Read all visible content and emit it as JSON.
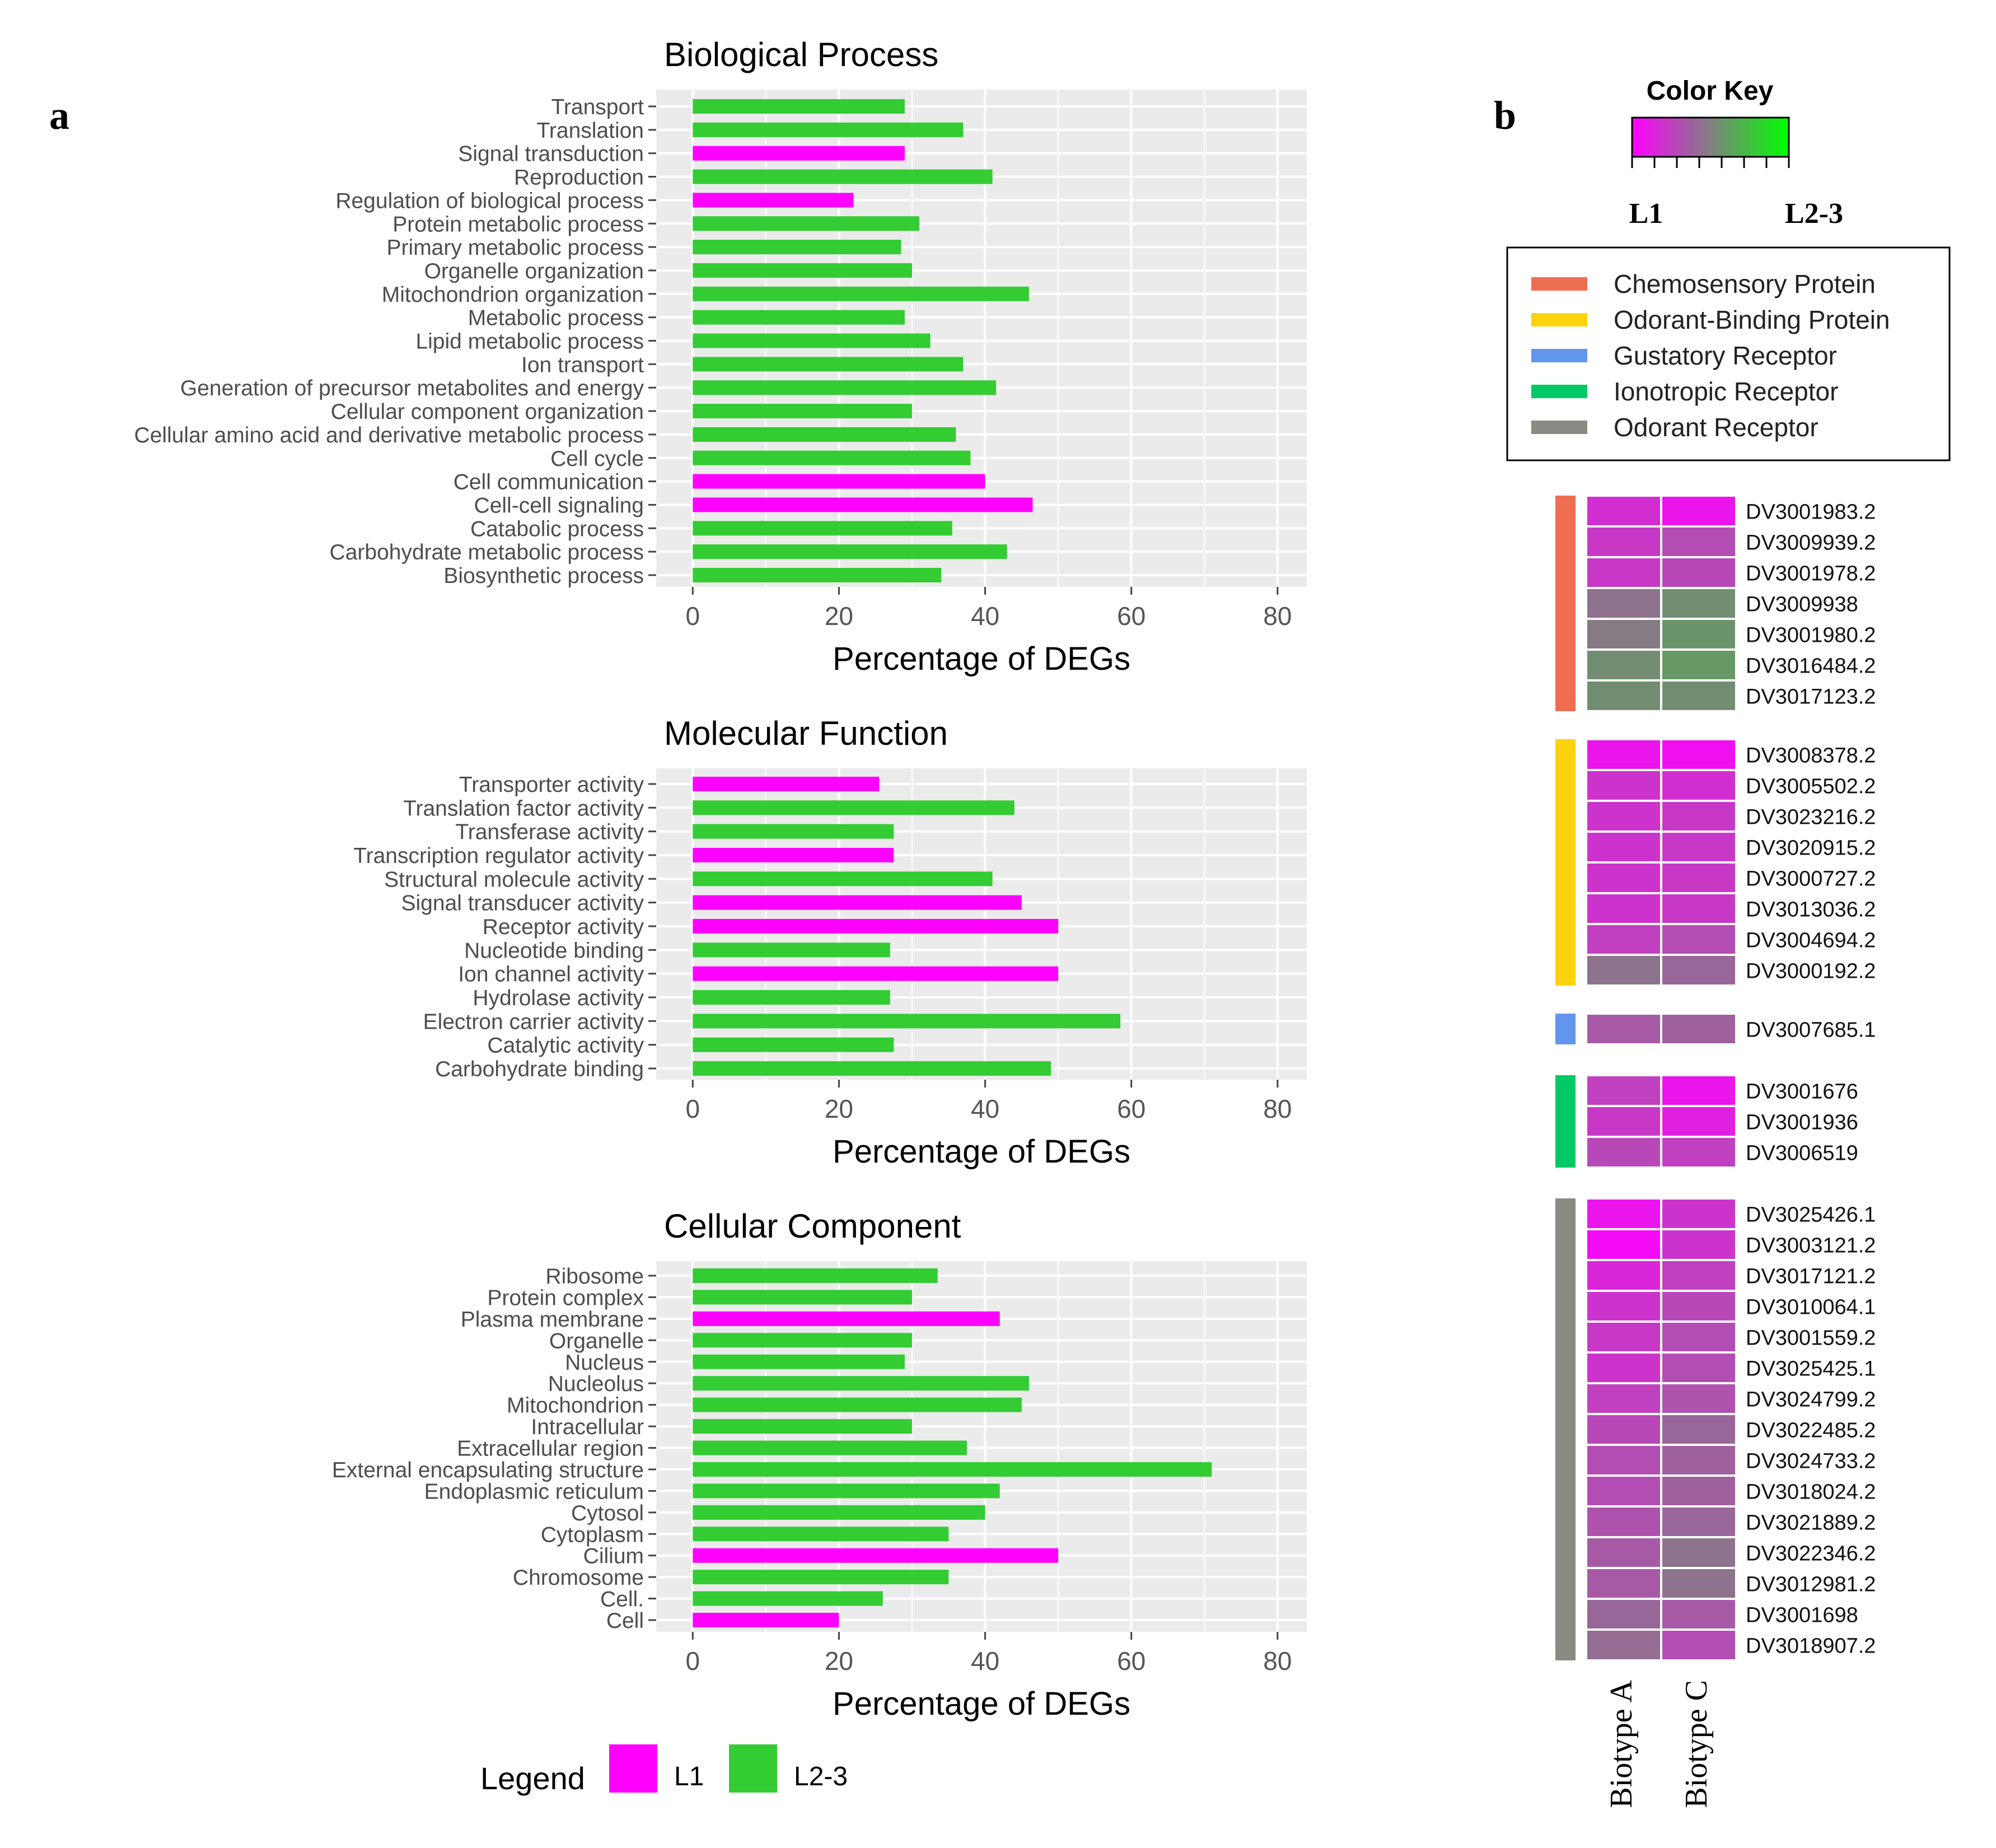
{
  "panel_labels": {
    "a": "a",
    "b": "b"
  },
  "axis": {
    "xlabel": "Percentage of DEGs",
    "ticks": [
      0,
      20,
      40,
      60,
      80
    ],
    "xlim": [
      -5,
      84
    ]
  },
  "colors": {
    "L1": "#ff00ff",
    "L2-3": "#33cc33",
    "panel_bg": "#ebebeb"
  },
  "legend": {
    "title": "Legend",
    "items": [
      "L1",
      "L2-3"
    ]
  },
  "chart_data": [
    {
      "type": "bar",
      "orientation": "horizontal",
      "title": "Biological Process",
      "xlabel": "Percentage of DEGs",
      "xlim": [
        0,
        80
      ],
      "categories": [
        "Transport",
        "Translation",
        "Signal transduction",
        "Reproduction",
        "Regulation of biological process",
        "Protein metabolic process",
        "Primary metabolic process",
        "Organelle organization",
        "Mitochondrion organization",
        "Metabolic process",
        "Lipid metabolic process",
        "Ion transport",
        "Generation of precursor metabolites and energy",
        "Cellular component organization",
        "Cellular amino acid and derivative metabolic process",
        "Cell cycle",
        "Cell communication",
        "Cell-cell signaling",
        "Catabolic process",
        "Carbohydrate metabolic process",
        "Biosynthetic process"
      ],
      "values": [
        29,
        37,
        29,
        41,
        22,
        31,
        28.5,
        30,
        46,
        29,
        32.5,
        37,
        41.5,
        30,
        36,
        38,
        40,
        46.5,
        35.5,
        43,
        34
      ],
      "groups": [
        "L2-3",
        "L2-3",
        "L1",
        "L2-3",
        "L1",
        "L2-3",
        "L2-3",
        "L2-3",
        "L2-3",
        "L2-3",
        "L2-3",
        "L2-3",
        "L2-3",
        "L2-3",
        "L2-3",
        "L2-3",
        "L1",
        "L1",
        "L2-3",
        "L2-3",
        "L2-3"
      ]
    },
    {
      "type": "bar",
      "orientation": "horizontal",
      "title": "Molecular Function",
      "xlabel": "Percentage of DEGs",
      "xlim": [
        0,
        80
      ],
      "categories": [
        "Transporter activity",
        "Translation factor activity",
        "Transferase activity",
        "Transcription regulator activity",
        "Structural molecule activity",
        "Signal transducer activity",
        "Receptor activity",
        "Nucleotide binding",
        "Ion channel activity",
        "Hydrolase activity",
        "Electron carrier activity",
        "Catalytic activity",
        "Carbohydrate binding"
      ],
      "values": [
        25.5,
        44,
        27.5,
        27.5,
        41,
        45,
        50,
        27,
        50,
        27,
        58.5,
        27.5,
        49
      ],
      "groups": [
        "L1",
        "L2-3",
        "L2-3",
        "L1",
        "L2-3",
        "L1",
        "L1",
        "L2-3",
        "L1",
        "L2-3",
        "L2-3",
        "L2-3",
        "L2-3"
      ]
    },
    {
      "type": "bar",
      "orientation": "horizontal",
      "title": "Cellular Component",
      "xlabel": "Percentage of DEGs",
      "xlim": [
        0,
        80
      ],
      "categories": [
        "Ribosome",
        "Protein complex",
        "Plasma membrane",
        "Organelle",
        "Nucleus",
        "Nucleolus",
        "Mitochondrion",
        "Intracellular",
        "Extracellular region",
        "External encapsulating structure",
        "Endoplasmic reticulum",
        "Cytosol",
        "Cytoplasm",
        "Cilium",
        "Chromosome",
        "Cell.",
        "Cell"
      ],
      "values": [
        33.5,
        30,
        42,
        30,
        29,
        46,
        45,
        30,
        37.5,
        71,
        42,
        40,
        35,
        50,
        35,
        26,
        20
      ],
      "groups": [
        "L2-3",
        "L2-3",
        "L1",
        "L2-3",
        "L2-3",
        "L2-3",
        "L2-3",
        "L2-3",
        "L2-3",
        "L2-3",
        "L2-3",
        "L2-3",
        "L2-3",
        "L1",
        "L2-3",
        "L2-3",
        "L1"
      ]
    },
    {
      "type": "heatmap",
      "color_key": {
        "title": "Color Key",
        "low": "L1",
        "high": "L2-3",
        "low_color": "#ff00ff",
        "mid_color": "#808080",
        "high_color": "#00ff00"
      },
      "columns": [
        "Biotype A",
        "Biotype C"
      ],
      "families": [
        {
          "name": "Chemosensory Protein",
          "color": "#ef6e52",
          "genes": [
            "DV3001983.2",
            "DV3009939.2",
            "DV3001978.2",
            "DV3009938",
            "DV3001980.2",
            "DV3016484.2",
            "DV3017123.2"
          ],
          "values": [
            [
              0.18,
              0.08
            ],
            [
              0.22,
              0.3
            ],
            [
              0.22,
              0.28
            ],
            [
              0.45,
              0.55
            ],
            [
              0.48,
              0.58
            ],
            [
              0.55,
              0.6
            ],
            [
              0.55,
              0.55
            ]
          ]
        },
        {
          "name": "Odorant-Binding Protein",
          "color": "#fdd20e",
          "genes": [
            "DV3008378.2",
            "DV3005502.2",
            "DV3023216.2",
            "DV3020915.2",
            "DV3000727.2",
            "DV3013036.2",
            "DV3004694.2",
            "DV3000192.2"
          ],
          "values": [
            [
              0.08,
              0.06
            ],
            [
              0.2,
              0.18
            ],
            [
              0.2,
              0.22
            ],
            [
              0.2,
              0.22
            ],
            [
              0.2,
              0.22
            ],
            [
              0.2,
              0.22
            ],
            [
              0.25,
              0.3
            ],
            [
              0.45,
              0.4
            ]
          ]
        },
        {
          "name": "Gustatory Receptor",
          "color": "#6495ed",
          "genes": [
            "DV3007685.1"
          ],
          "values": [
            [
              0.35,
              0.38
            ]
          ]
        },
        {
          "name": "Ionotropic Receptor",
          "color": "#00c965",
          "genes": [
            "DV3001676",
            "DV3001936",
            "DV3006519"
          ],
          "values": [
            [
              0.25,
              0.08
            ],
            [
              0.22,
              0.12
            ],
            [
              0.28,
              0.25
            ]
          ]
        },
        {
          "name": "Odorant Receptor",
          "color": "#8a8a82",
          "genes": [
            "DV3025426.1",
            "DV3003121.2",
            "DV3017121.2",
            "DV3010064.1",
            "DV3001559.2",
            "DV3025425.1",
            "DV3024799.2",
            "DV3022485.2",
            "DV3024733.2",
            "DV3018024.2",
            "DV3021889.2",
            "DV3022346.2",
            "DV3012981.2",
            "DV3001698",
            "DV3018907.2"
          ],
          "values": [
            [
              0.08,
              0.2
            ],
            [
              0.04,
              0.2
            ],
            [
              0.15,
              0.25
            ],
            [
              0.2,
              0.28
            ],
            [
              0.22,
              0.3
            ],
            [
              0.2,
              0.3
            ],
            [
              0.25,
              0.32
            ],
            [
              0.28,
              0.4
            ],
            [
              0.3,
              0.38
            ],
            [
              0.3,
              0.38
            ],
            [
              0.32,
              0.4
            ],
            [
              0.35,
              0.45
            ],
            [
              0.35,
              0.45
            ],
            [
              0.4,
              0.35
            ],
            [
              0.42,
              0.3
            ]
          ]
        }
      ]
    }
  ]
}
